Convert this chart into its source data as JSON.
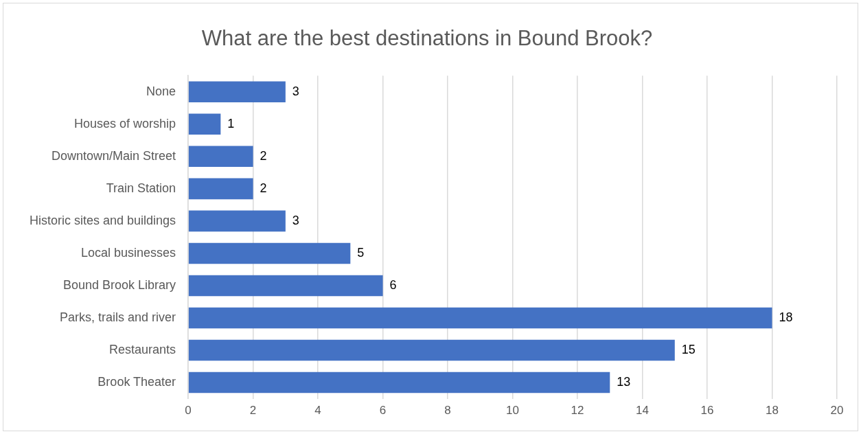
{
  "chart_data": {
    "type": "bar",
    "orientation": "horizontal",
    "title": "What are the best destinations in Bound Brook?",
    "categories": [
      "None",
      "Houses of worship",
      "Downtown/Main Street",
      "Train Station",
      "Historic sites and buildings",
      "Local businesses",
      "Bound Brook Library",
      "Parks, trails and river",
      "Restaurants",
      "Brook Theater"
    ],
    "values": [
      3,
      1,
      2,
      2,
      3,
      5,
      6,
      18,
      15,
      13
    ],
    "color": "#4472c4",
    "xlim": [
      0,
      20
    ],
    "xticks": [
      0,
      2,
      4,
      6,
      8,
      10,
      12,
      14,
      16,
      18,
      20
    ],
    "grid": "x",
    "data_labels": true
  }
}
